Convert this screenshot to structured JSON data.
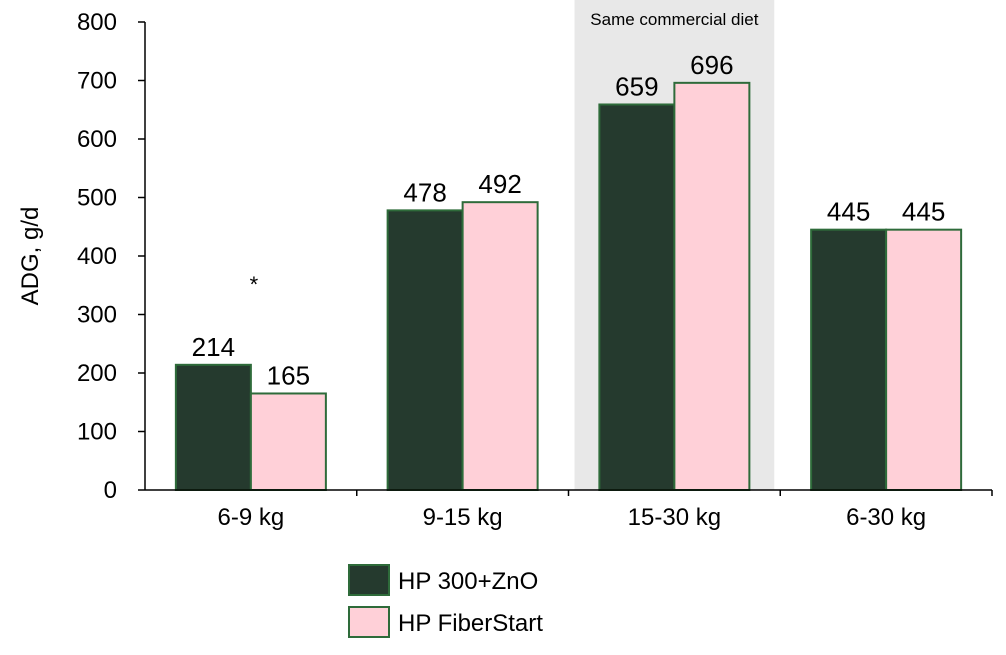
{
  "chart_data": {
    "type": "bar",
    "categories": [
      "6-9 kg",
      "9-15 kg",
      "15-30 kg",
      "6-30 kg"
    ],
    "series": [
      {
        "name": "HP 300+ZnO",
        "values": [
          214,
          478,
          659,
          445
        ],
        "color": "#253a2e"
      },
      {
        "name": "HP FiberStart",
        "values": [
          165,
          492,
          696,
          445
        ],
        "color": "#ffd0d8"
      }
    ],
    "bar_border_color": "#2e6b3a",
    "ylabel": "ADG, g/d",
    "ylim": [
      0,
      800
    ],
    "yticks": [
      0,
      100,
      200,
      300,
      400,
      500,
      600,
      700,
      800
    ],
    "grid": false,
    "legend_position": "bottom",
    "shaded_region": {
      "category": "15-30 kg",
      "label": "Same commercial diet",
      "color": "#e8e8e8"
    },
    "annotations": [
      {
        "category": "6-9 kg",
        "text": "*"
      }
    ]
  }
}
